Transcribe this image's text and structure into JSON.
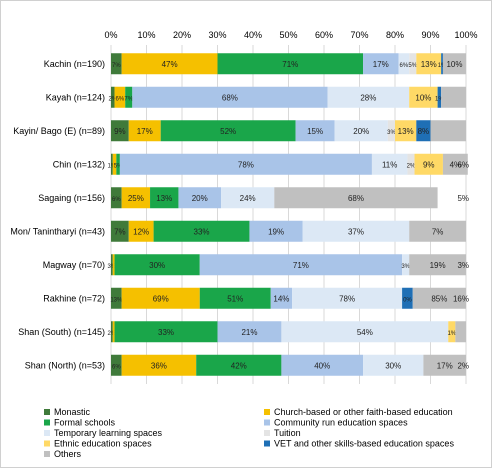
{
  "chart_data": {
    "type": "bar",
    "orientation": "horizontal",
    "stacked": true,
    "xlim": [
      0,
      100
    ],
    "x_ticks": [
      "0%",
      "10%",
      "20%",
      "30%",
      "40%",
      "50%",
      "60%",
      "70%",
      "80%",
      "90%",
      "100%"
    ],
    "grid": true,
    "legend_position": "bottom",
    "categories": [
      "Kachin (n=190)",
      "Kayah (n=124)",
      "Kayin/ Bago (E) (n=89)",
      "Chin (n=132)",
      "Sagaing (n=156)",
      "Mon/ Tanintharyi (n=43)",
      "Magway (n=70)",
      "Rakhine (n=72)",
      "Shan (South) (n=145)",
      "Shan (North) (n=53)"
    ],
    "series": [
      {
        "name": "Monastic",
        "color": "#3f7a3a",
        "segments": [
          3,
          1,
          5,
          0.5,
          3,
          5,
          0.5,
          3,
          0.5,
          3
        ],
        "labels": [
          "7%",
          "2%",
          "9%",
          "1%",
          "6%",
          "7%",
          "3%",
          "13%",
          "2%",
          "6%"
        ]
      },
      {
        "name": "Church-based or other faith-based education",
        "color": "#f5c000",
        "segments": [
          27,
          3,
          9,
          1,
          8,
          7,
          0.5,
          22,
          0.5,
          21
        ],
        "labels": [
          "47%",
          "6%",
          "17%",
          "",
          "25%",
          "12%",
          "",
          "69%",
          "",
          "36%"
        ]
      },
      {
        "name": "Formal schools",
        "color": "#1aa64a",
        "segments": [
          41,
          2,
          38,
          1,
          8,
          27,
          24,
          20,
          29,
          24
        ],
        "labels": [
          "71%",
          "7%",
          "52%",
          "5%",
          "13%",
          "33%",
          "30%",
          "51%",
          "33%",
          "42%"
        ]
      },
      {
        "name": "Community run education spaces",
        "color": "#a9c4e8",
        "segments": [
          10,
          55,
          11,
          71,
          12,
          15,
          57,
          6,
          18,
          23
        ],
        "labels": [
          "17%",
          "68%",
          "15%",
          "78%",
          "20%",
          "19%",
          "71%",
          "14%",
          "21%",
          "40%"
        ]
      },
      {
        "name": "Temporary learning spaces",
        "color": "#dce8f5",
        "segments": [
          3,
          23,
          15,
          10,
          15,
          30,
          2,
          31,
          47,
          17
        ],
        "labels": [
          "6%",
          "28%",
          "20%",
          "11%",
          "24%",
          "37%",
          "3%",
          "78%",
          "54%",
          "30%"
        ]
      },
      {
        "name": "Tuition",
        "color": "#e4e4e4",
        "segments": [
          2,
          0,
          2,
          2,
          0,
          0,
          0,
          0,
          0,
          0
        ],
        "labels": [
          "5%",
          "",
          "3%",
          "2%",
          "",
          "",
          "",
          "",
          "",
          ""
        ]
      },
      {
        "name": "Ethnic education spaces",
        "color": "#ffd966",
        "segments": [
          7,
          8,
          6,
          8,
          0,
          0,
          0,
          0,
          2,
          0
        ],
        "labels": [
          "13%",
          "10%",
          "13%",
          "9%",
          "",
          "",
          "",
          "",
          "1%",
          ""
        ]
      },
      {
        "name": "VET and other skills-based education spaces",
        "color": "#1f6fb5",
        "segments": [
          0.5,
          1,
          4,
          0,
          0,
          0,
          0,
          3,
          0,
          0
        ],
        "labels": [
          "1%",
          "1%",
          "8%",
          "",
          "",
          "",
          "",
          "0%",
          "",
          ""
        ]
      },
      {
        "name": "Others",
        "color": "#c0c0c0",
        "segments": [
          6.5,
          7,
          10,
          7,
          46,
          16,
          16,
          15,
          3,
          12
        ],
        "labels": [
          "10%",
          "",
          "",
          "4%",
          "68%",
          "7%",
          "19%",
          "85%",
          "",
          "17%"
        ]
      }
    ],
    "end_labels": [
      {
        "row": 3,
        "text": "6%"
      },
      {
        "row": 4,
        "text": "5%"
      },
      {
        "row": 6,
        "text": "3%"
      },
      {
        "row": 7,
        "text": "16%"
      },
      {
        "row": 9,
        "text": "2%"
      }
    ]
  }
}
